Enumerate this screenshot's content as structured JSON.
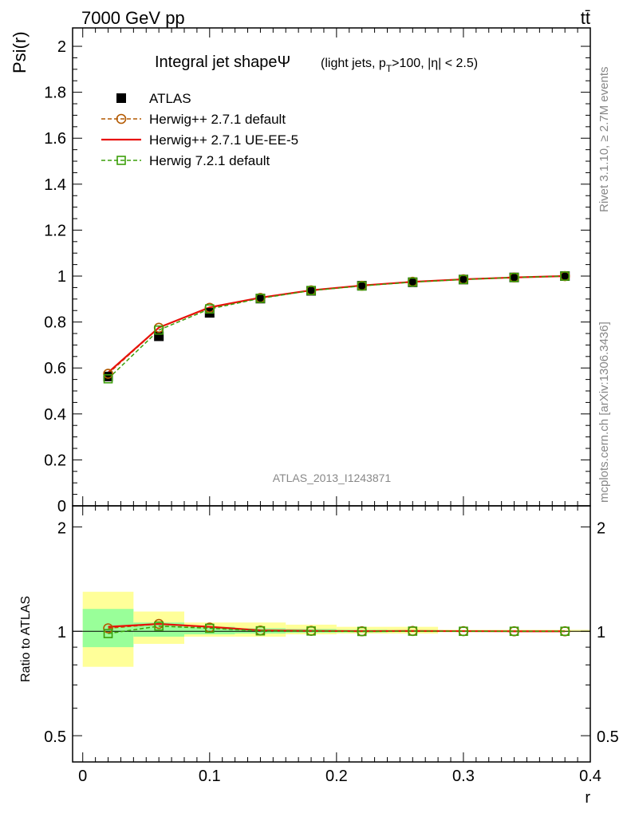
{
  "header": {
    "energy_label": "7000 GeV pp",
    "process_label": "tt̄"
  },
  "side_labels": {
    "rivet": "Rivet 3.1.10, ≥ 2.7M events",
    "mcplots": "mcplots.cern.ch [arXiv:1306.3436]"
  },
  "chart_data": [
    {
      "type": "line",
      "title": "Integral jet shapeΨ",
      "title_detail": "(light jets, pT>100, |η| < 2.5)",
      "ylabel": "Psi(r)",
      "watermark": "ATLAS_2013_I1243871",
      "ylim": [
        0,
        2.08
      ],
      "xlim": [
        -0.008,
        0.4
      ],
      "yticks": [
        "0",
        "0.2",
        "0.4",
        "0.6",
        "0.8",
        "1",
        "1.2",
        "1.4",
        "1.6",
        "1.8",
        "2"
      ],
      "legend_position": "top-left",
      "x": [
        0.02,
        0.06,
        0.1,
        0.14,
        0.18,
        0.22,
        0.26,
        0.3,
        0.34,
        0.38
      ],
      "series": [
        {
          "name": "ATLAS",
          "color": "#000000",
          "marker": "filled-square",
          "values": [
            0.563,
            0.738,
            0.84,
            0.902,
            0.936,
            0.958,
            0.973,
            0.985,
            0.994,
            1.0
          ]
        },
        {
          "name": "Herwig++ 2.7.1 default",
          "color": "#b35900",
          "marker": "open-circle",
          "line": "dashed",
          "values": [
            0.575,
            0.775,
            0.862,
            0.905,
            0.938,
            0.958,
            0.975,
            0.986,
            0.994,
            1.0
          ]
        },
        {
          "name": "Herwig++ 2.7.1 UE-EE-5",
          "color": "#e8120b",
          "marker": "none",
          "line": "solid",
          "values": [
            0.58,
            0.776,
            0.864,
            0.906,
            0.938,
            0.959,
            0.975,
            0.986,
            0.994,
            1.0
          ]
        },
        {
          "name": "Herwig 7.2.1 default",
          "color": "#3c9f0a",
          "marker": "open-square",
          "line": "dashed",
          "values": [
            0.553,
            0.765,
            0.857,
            0.903,
            0.937,
            0.957,
            0.974,
            0.985,
            0.994,
            1.0
          ]
        }
      ]
    },
    {
      "type": "line",
      "ylabel": "Ratio to ATLAS",
      "xlabel": "r",
      "scale": "log",
      "ylim": [
        0.42,
        2.3
      ],
      "yticks": [
        "0.5",
        "1",
        "2"
      ],
      "xticks": [
        "0",
        "0.1",
        "0.2",
        "0.3",
        "0.4"
      ],
      "uncertainty_bands": {
        "bins": [
          [
            0,
            0.04
          ],
          [
            0.04,
            0.08
          ],
          [
            0.08,
            0.12
          ],
          [
            0.12,
            0.16
          ],
          [
            0.16,
            0.2
          ],
          [
            0.2,
            0.24
          ],
          [
            0.24,
            0.28
          ],
          [
            0.28,
            0.32
          ],
          [
            0.32,
            0.36
          ],
          [
            0.36,
            0.4
          ]
        ],
        "stat_color": "#99ff99",
        "syst_color": "#ffff99",
        "total_lo": [
          0.79,
          0.92,
          0.965,
          0.965,
          0.98,
          0.985,
          0.985,
          0.995,
          0.995,
          0.995
        ],
        "total_hi": [
          1.3,
          1.14,
          1.06,
          1.06,
          1.045,
          1.03,
          1.03,
          1.01,
          1.01,
          1.01
        ],
        "stat_lo": [
          0.9,
          0.965,
          0.98,
          0.985,
          0.99,
          0.992,
          0.995,
          0.997,
          0.998,
          0.999
        ],
        "stat_hi": [
          1.16,
          1.06,
          1.03,
          1.02,
          1.015,
          1.01,
          1.008,
          1.005,
          1.003,
          1.001
        ]
      },
      "x": [
        0.02,
        0.06,
        0.1,
        0.14,
        0.18,
        0.22,
        0.26,
        0.3,
        0.34,
        0.38
      ],
      "series": [
        {
          "name": "Herwig++ 2.7.1 default",
          "color": "#b35900",
          "marker": "open-circle",
          "line": "dashed",
          "values": [
            1.02,
            1.05,
            1.025,
            1.005,
            1.003,
            1.0,
            1.002,
            1.001,
            1.0,
            1.0
          ]
        },
        {
          "name": "Herwig++ 2.7.1 UE-EE-5",
          "color": "#e8120b",
          "marker": "none",
          "line": "solid",
          "values": [
            1.03,
            1.05,
            1.03,
            1.006,
            1.003,
            1.001,
            1.002,
            1.001,
            1.0,
            1.0
          ]
        },
        {
          "name": "Herwig 7.2.1 default",
          "color": "#3c9f0a",
          "marker": "open-square",
          "line": "dashed",
          "values": [
            0.985,
            1.035,
            1.02,
            1.003,
            1.002,
            0.999,
            1.001,
            1.0,
            1.0,
            1.0
          ]
        }
      ]
    }
  ]
}
